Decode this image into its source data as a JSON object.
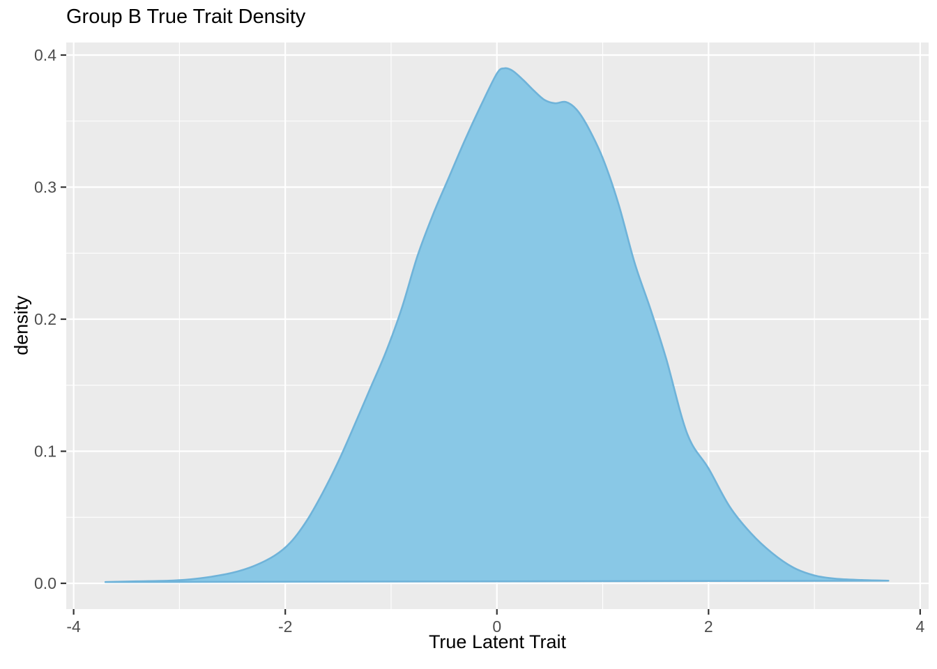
{
  "title": "Group B True Trait Density",
  "axes": {
    "x_title": "True Latent Trait",
    "y_title": "density"
  },
  "chart_data": {
    "type": "area",
    "title": "Group B True Trait Density",
    "xlabel": "True Latent Trait",
    "ylabel": "density",
    "legend": "none",
    "grid": true,
    "xlim": [
      -4.07,
      4.08
    ],
    "ylim": [
      -0.0195,
      0.4095
    ],
    "x_tick_values": [
      -4,
      -2,
      0,
      2,
      4
    ],
    "x_tick_labels": [
      "-4",
      "-2",
      "0",
      "2",
      "4"
    ],
    "y_tick_values": [
      0.0,
      0.1,
      0.2,
      0.3,
      0.4
    ],
    "y_tick_labels": [
      "0.0",
      "0.1",
      "0.2",
      "0.3",
      "0.4"
    ],
    "x_minor_gridlines": [
      -3,
      -1,
      1,
      3
    ],
    "y_minor_gridlines": [
      0.05,
      0.15,
      0.25,
      0.35
    ],
    "series": [
      {
        "name": "density",
        "x": [
          -3.7,
          -3.4,
          -3.1,
          -2.9,
          -2.7,
          -2.5,
          -2.3,
          -2.1,
          -1.95,
          -1.8,
          -1.65,
          -1.5,
          -1.35,
          -1.2,
          -1.05,
          -0.9,
          -0.75,
          -0.6,
          -0.45,
          -0.3,
          -0.15,
          0.0,
          0.07,
          0.15,
          0.25,
          0.35,
          0.45,
          0.55,
          0.65,
          0.75,
          0.85,
          1.0,
          1.15,
          1.3,
          1.45,
          1.6,
          1.8,
          2.0,
          2.2,
          2.4,
          2.6,
          2.8,
          3.0,
          3.2,
          3.45,
          3.7
        ],
        "y": [
          0.001,
          0.0015,
          0.002,
          0.003,
          0.005,
          0.008,
          0.013,
          0.021,
          0.031,
          0.047,
          0.068,
          0.092,
          0.119,
          0.147,
          0.175,
          0.208,
          0.248,
          0.28,
          0.308,
          0.336,
          0.362,
          0.386,
          0.39,
          0.388,
          0.381,
          0.373,
          0.366,
          0.3635,
          0.3645,
          0.359,
          0.347,
          0.322,
          0.287,
          0.243,
          0.208,
          0.17,
          0.113,
          0.087,
          0.058,
          0.038,
          0.023,
          0.012,
          0.006,
          0.0035,
          0.0025,
          0.002
        ]
      }
    ],
    "peak": {
      "x": 0.07,
      "density": 0.39
    },
    "shoulder": {
      "x": 0.6,
      "density": 0.364
    },
    "colors": {
      "fill": "#89C8E6",
      "outline": "#6FB3D9",
      "panel_background": "#EBEBEB",
      "gridline": "#FFFFFF",
      "tick_label": "#4D4D4D",
      "tick_mark": "#333333",
      "text": "#000000",
      "page_background": "#FFFFFF"
    }
  }
}
